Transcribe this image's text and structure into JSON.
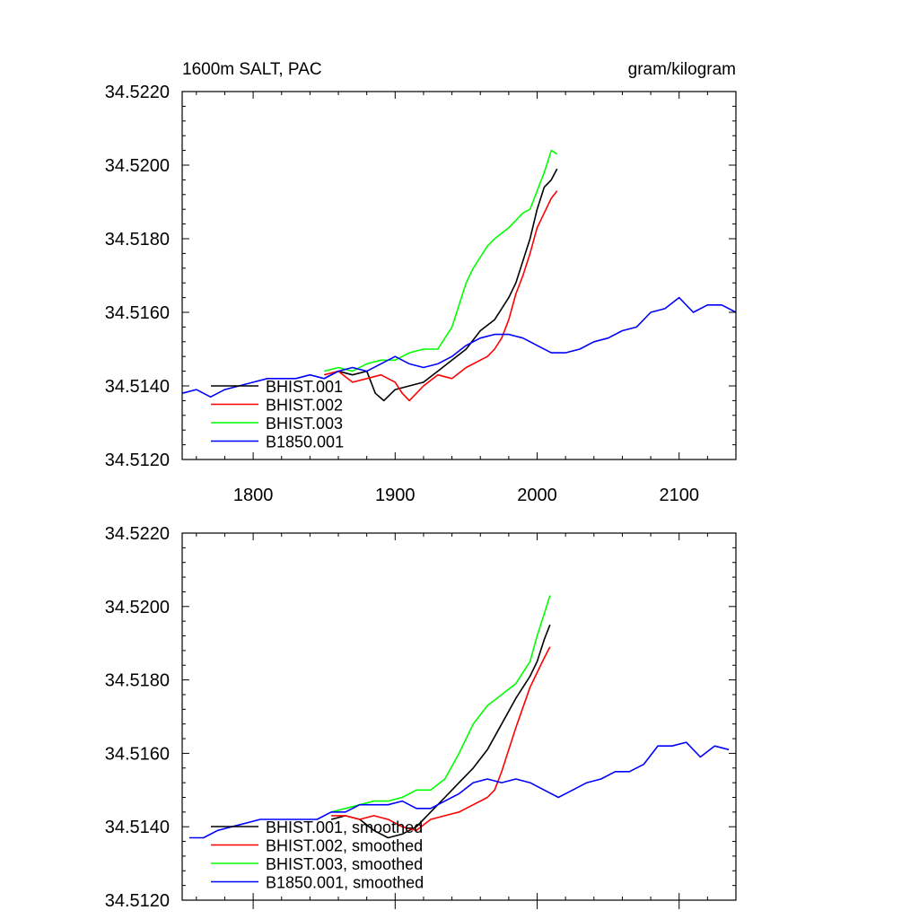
{
  "figure": {
    "title_left": "1600m SALT, PAC",
    "title_right": "gram/kilogram"
  },
  "chart_data": [
    {
      "type": "line",
      "panel": "top",
      "title": "1600m SALT, PAC",
      "units": "gram/kilogram",
      "xlim": [
        1750,
        2140
      ],
      "ylim": [
        34.512,
        34.522
      ],
      "xticks": [
        1800,
        1900,
        2000,
        2100
      ],
      "xtick_labels": [
        "1800",
        "1900",
        "2000",
        "2100"
      ],
      "yticks": [
        34.512,
        34.514,
        34.516,
        34.518,
        34.52,
        34.522
      ],
      "ytick_labels": [
        "34.5120",
        "34.5140",
        "34.5160",
        "34.5180",
        "34.5200",
        "34.5220"
      ],
      "legend_position": "bottom-left",
      "series": [
        {
          "name": "BHIST.001",
          "color": "#000000",
          "x": [
            1850,
            1860,
            1870,
            1880,
            1886,
            1892,
            1900,
            1910,
            1920,
            1930,
            1940,
            1950,
            1960,
            1970,
            1975,
            1980,
            1985,
            1990,
            1995,
            2000,
            2005,
            2010,
            2014
          ],
          "y": [
            34.5142,
            34.5144,
            34.5143,
            34.5144,
            34.5138,
            34.5136,
            34.5139,
            34.514,
            34.5141,
            34.5144,
            34.5147,
            34.515,
            34.5155,
            34.5158,
            34.5161,
            34.5164,
            34.5168,
            34.5174,
            34.518,
            34.5188,
            34.5194,
            34.5196,
            34.5199
          ]
        },
        {
          "name": "BHIST.002",
          "color": "#ff0000",
          "x": [
            1850,
            1860,
            1870,
            1880,
            1890,
            1900,
            1905,
            1910,
            1920,
            1930,
            1940,
            1950,
            1960,
            1965,
            1970,
            1975,
            1980,
            1985,
            1990,
            1995,
            2000,
            2005,
            2010,
            2014
          ],
          "y": [
            34.5143,
            34.5144,
            34.5141,
            34.5142,
            34.5143,
            34.5141,
            34.5138,
            34.5136,
            34.514,
            34.5143,
            34.5142,
            34.5145,
            34.5147,
            34.5148,
            34.515,
            34.5153,
            34.5158,
            34.5165,
            34.517,
            34.5176,
            34.5183,
            34.5187,
            34.5191,
            34.5193
          ]
        },
        {
          "name": "BHIST.003",
          "color": "#00ff00",
          "x": [
            1850,
            1860,
            1870,
            1880,
            1890,
            1900,
            1910,
            1920,
            1930,
            1935,
            1940,
            1945,
            1950,
            1955,
            1960,
            1965,
            1970,
            1980,
            1990,
            1995,
            2000,
            2005,
            2010,
            2014
          ],
          "y": [
            34.5144,
            34.5145,
            34.5144,
            34.5146,
            34.5147,
            34.5147,
            34.5149,
            34.515,
            34.515,
            34.5153,
            34.5156,
            34.5162,
            34.5168,
            34.5172,
            34.5175,
            34.5178,
            34.518,
            34.5183,
            34.5187,
            34.5188,
            34.5193,
            34.5198,
            34.5204,
            34.5203
          ]
        },
        {
          "name": "B1850.001",
          "color": "#0000ff",
          "x": [
            1750,
            1760,
            1770,
            1780,
            1790,
            1800,
            1810,
            1820,
            1830,
            1840,
            1850,
            1860,
            1870,
            1880,
            1890,
            1900,
            1910,
            1920,
            1930,
            1940,
            1950,
            1960,
            1970,
            1980,
            1990,
            2000,
            2010,
            2020,
            2030,
            2040,
            2050,
            2060,
            2070,
            2080,
            2090,
            2100,
            2110,
            2120,
            2130,
            2140
          ],
          "y": [
            34.5138,
            34.5139,
            34.5137,
            34.5139,
            34.514,
            34.5141,
            34.5142,
            34.5142,
            34.5142,
            34.5143,
            34.5142,
            34.5144,
            34.5145,
            34.5144,
            34.5146,
            34.5148,
            34.5146,
            34.5145,
            34.5146,
            34.5148,
            34.5151,
            34.5153,
            34.5154,
            34.5154,
            34.5153,
            34.5151,
            34.5149,
            34.5149,
            34.515,
            34.5152,
            34.5153,
            34.5155,
            34.5156,
            34.516,
            34.5161,
            34.5164,
            34.516,
            34.5162,
            34.5162,
            34.516
          ]
        }
      ]
    },
    {
      "type": "line",
      "panel": "bottom",
      "xlim": [
        1750,
        2140
      ],
      "ylim": [
        34.512,
        34.522
      ],
      "yticks": [
        34.512,
        34.514,
        34.516,
        34.518,
        34.52,
        34.522
      ],
      "ytick_labels": [
        "34.5120",
        "34.5140",
        "34.5160",
        "34.5180",
        "34.5200",
        "34.5220"
      ],
      "legend_position": "bottom-left",
      "series": [
        {
          "name": "BHIST.001, smoothed",
          "color": "#000000",
          "x": [
            1855,
            1865,
            1875,
            1885,
            1895,
            1905,
            1915,
            1925,
            1935,
            1945,
            1955,
            1965,
            1975,
            1985,
            1995,
            2000,
            2005,
            2009
          ],
          "y": [
            34.5142,
            34.5143,
            34.5142,
            34.5139,
            34.5137,
            34.5138,
            34.514,
            34.5144,
            34.5148,
            34.5152,
            34.5156,
            34.5161,
            34.5168,
            34.5175,
            34.5181,
            34.5185,
            34.5191,
            34.5195
          ]
        },
        {
          "name": "BHIST.002, smoothed",
          "color": "#ff0000",
          "x": [
            1855,
            1865,
            1875,
            1885,
            1895,
            1905,
            1915,
            1925,
            1935,
            1945,
            1955,
            1965,
            1970,
            1975,
            1985,
            1995,
            2000,
            2005,
            2009
          ],
          "y": [
            34.5143,
            34.5143,
            34.5142,
            34.5143,
            34.5142,
            34.514,
            34.5139,
            34.5142,
            34.5143,
            34.5144,
            34.5146,
            34.5148,
            34.515,
            34.5155,
            34.5167,
            34.5178,
            34.5182,
            34.5186,
            34.5189
          ]
        },
        {
          "name": "BHIST.003, smoothed",
          "color": "#00ff00",
          "x": [
            1855,
            1865,
            1875,
            1885,
            1895,
            1905,
            1915,
            1925,
            1935,
            1945,
            1955,
            1965,
            1975,
            1985,
            1995,
            2000,
            2005,
            2009
          ],
          "y": [
            34.5144,
            34.5145,
            34.5146,
            34.5147,
            34.5147,
            34.5148,
            34.515,
            34.515,
            34.5153,
            34.516,
            34.5168,
            34.5173,
            34.5176,
            34.5179,
            34.5185,
            34.5192,
            34.5198,
            34.5203
          ]
        },
        {
          "name": "B1850.001, smoothed",
          "color": "#0000ff",
          "x": [
            1755,
            1765,
            1775,
            1785,
            1795,
            1805,
            1815,
            1825,
            1835,
            1845,
            1855,
            1865,
            1875,
            1885,
            1895,
            1905,
            1915,
            1925,
            1935,
            1945,
            1955,
            1965,
            1975,
            1985,
            1995,
            2005,
            2015,
            2025,
            2035,
            2045,
            2055,
            2065,
            2075,
            2085,
            2095,
            2105,
            2115,
            2125,
            2135
          ],
          "y": [
            34.5137,
            34.5137,
            34.5139,
            34.514,
            34.5141,
            34.5142,
            34.5142,
            34.5142,
            34.5142,
            34.5142,
            34.5144,
            34.5144,
            34.5146,
            34.5146,
            34.5146,
            34.5147,
            34.5145,
            34.5145,
            34.5147,
            34.5149,
            34.5152,
            34.5153,
            34.5152,
            34.5153,
            34.5152,
            34.515,
            34.5148,
            34.515,
            34.5152,
            34.5153,
            34.5155,
            34.5155,
            34.5157,
            34.5162,
            34.5162,
            34.5163,
            34.5159,
            34.5162,
            34.5161
          ]
        }
      ]
    }
  ]
}
